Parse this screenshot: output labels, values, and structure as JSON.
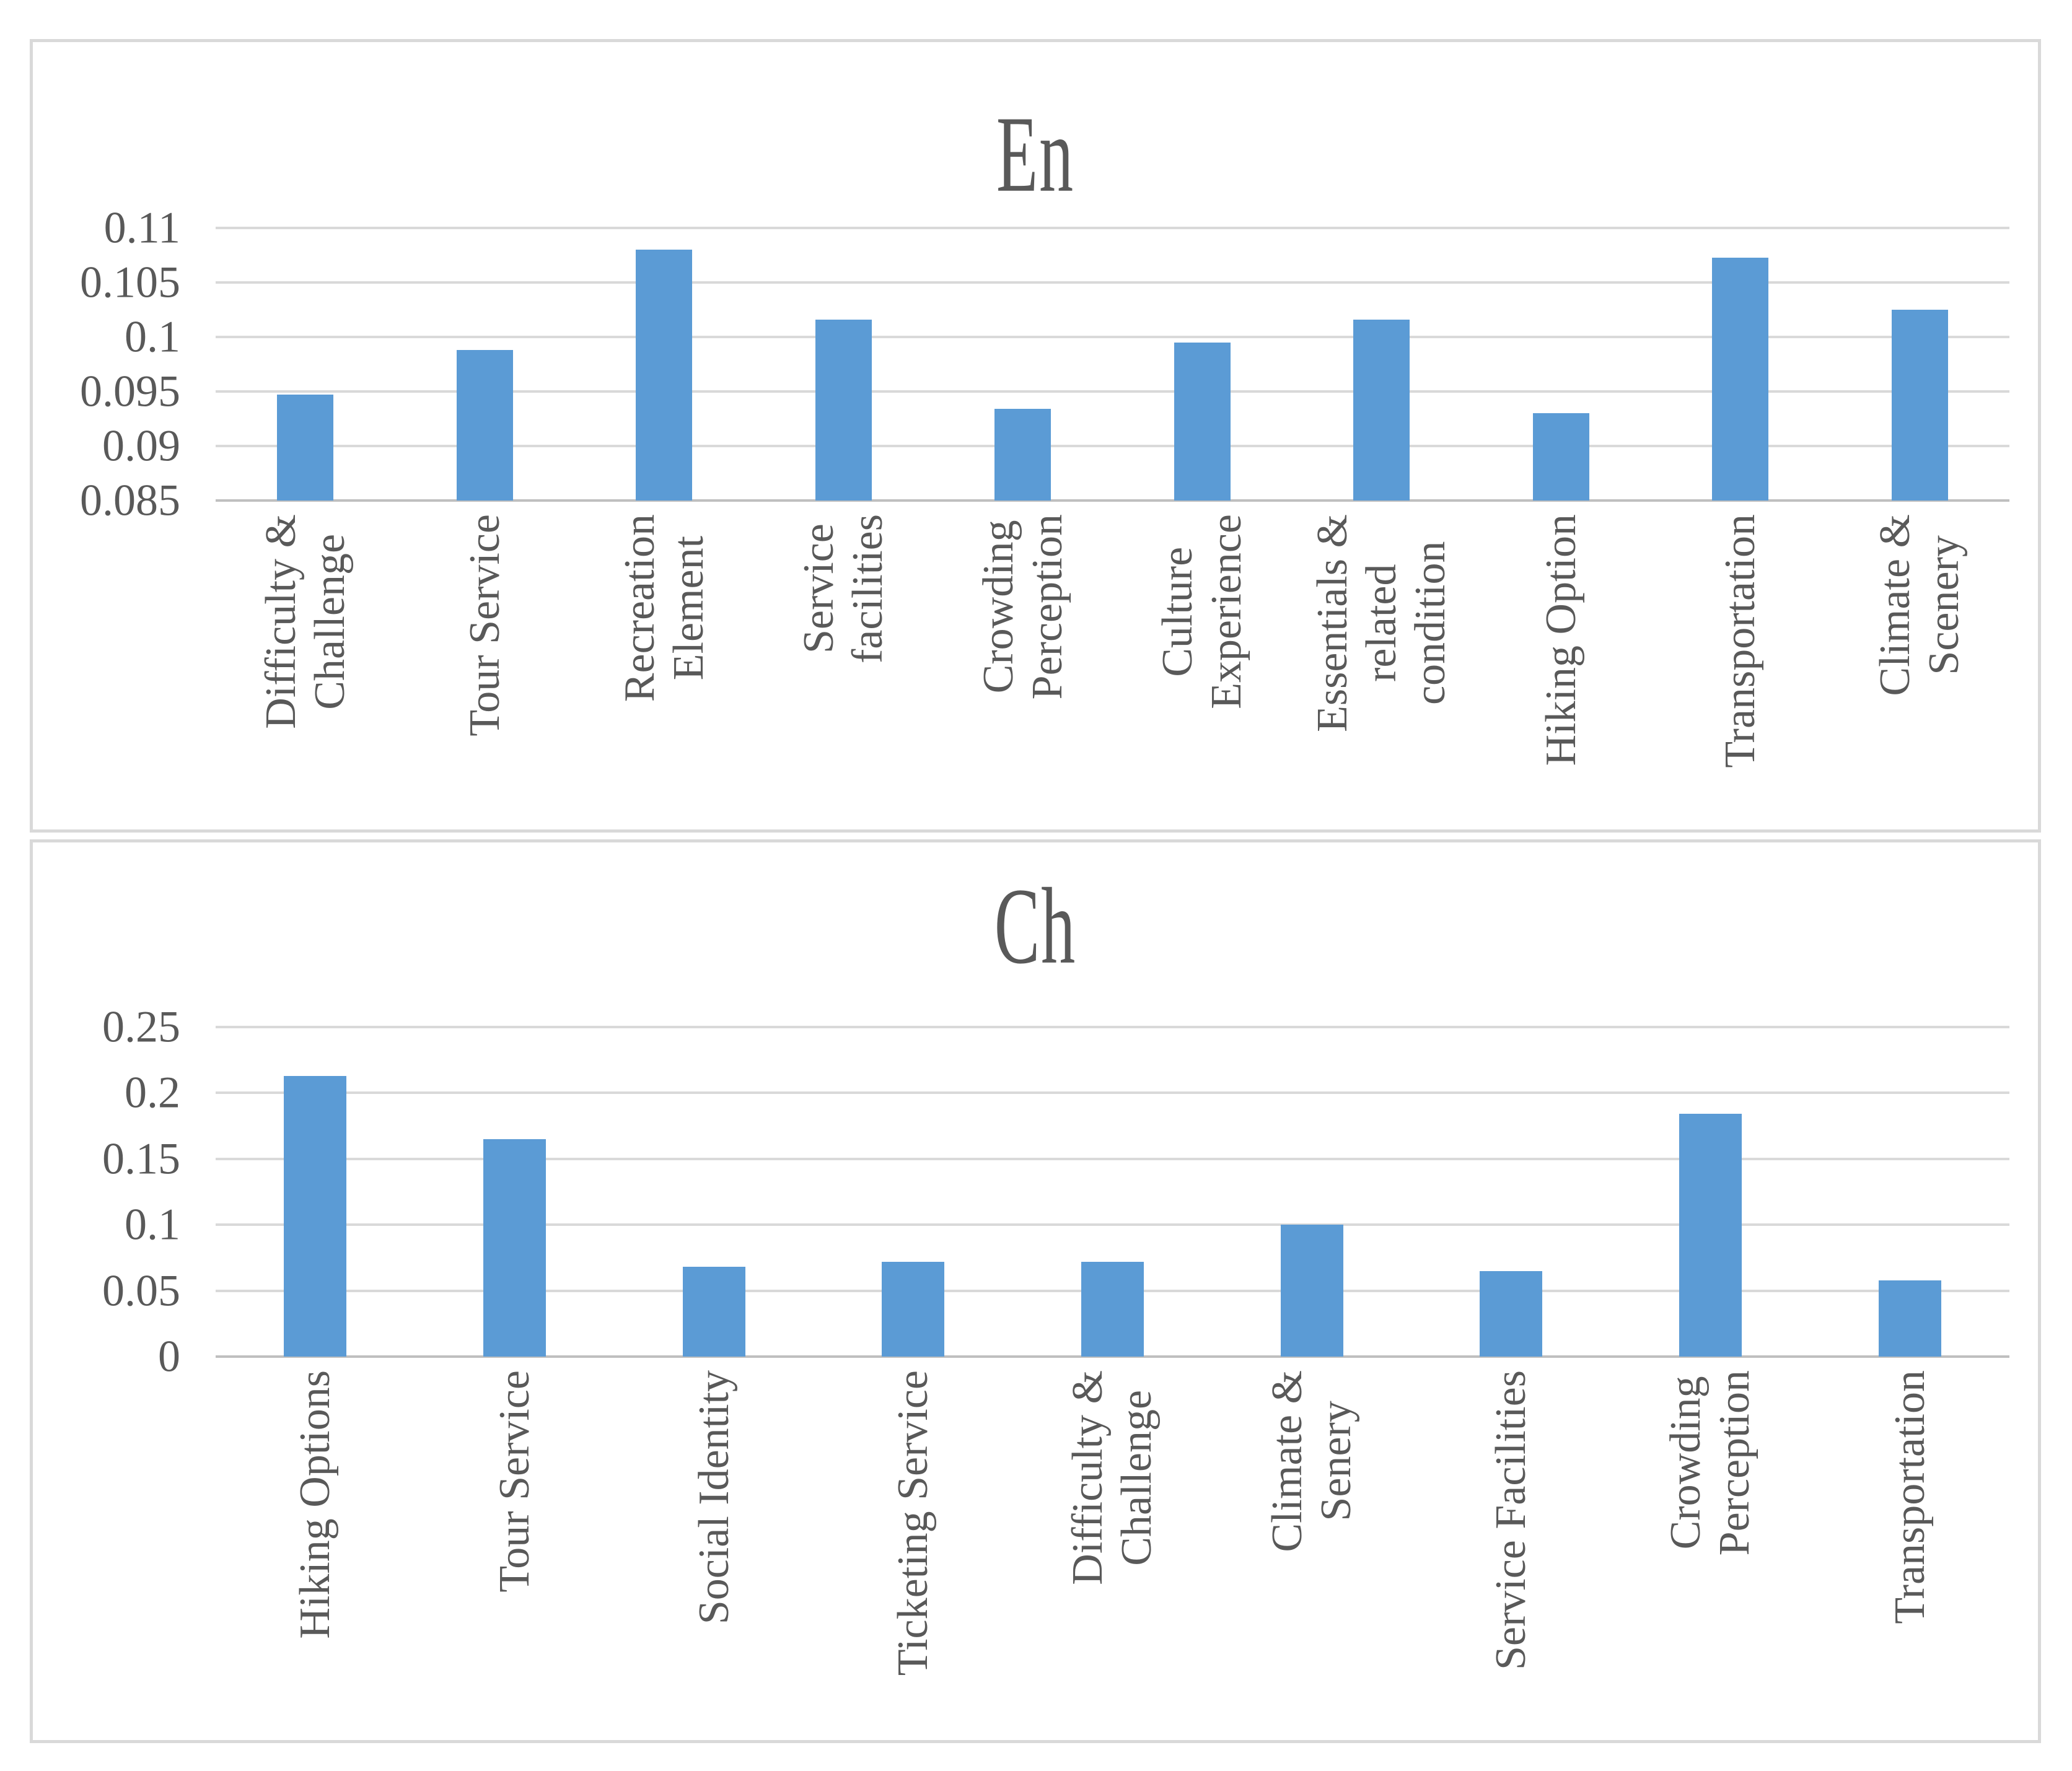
{
  "colors": {
    "bar": "#5B9BD5",
    "gridline": "#D9D9D9",
    "axis_line": "#BFBFBF",
    "text": "#595959",
    "panel_border": "#D9D9D9",
    "background": "#FFFFFF"
  },
  "chart_data": [
    {
      "type": "bar",
      "title": "En",
      "categories": [
        "Difficulty &\nChallenge",
        "Tour Service",
        "Recreation\nElement",
        "Service\nfacilities",
        "Crowding\nPerception",
        "Culture\nExperience",
        "Essentials &\nrelated\ncondition",
        "Hiking Option",
        "Transportation",
        "Climate &\nScenery"
      ],
      "values": [
        0.0947,
        0.0988,
        0.108,
        0.1016,
        0.0934,
        0.0995,
        0.1016,
        0.093,
        0.1073,
        0.1025
      ],
      "xlabel": "",
      "ylabel": "",
      "ylim": [
        0.085,
        0.11
      ],
      "ytick_step": 0.005,
      "ytick_labels": [
        "0.085",
        "0.09",
        "0.095",
        "0.1",
        "0.105",
        "0.11"
      ],
      "grid": true,
      "legend": "none",
      "bar_color": "#5B9BD5"
    },
    {
      "type": "bar",
      "title": "Ch",
      "categories": [
        "Hiking Options",
        "Tour Service",
        "Social Identity",
        "Ticketing Service",
        "Difficulty &\nChallenge",
        "Climate &\nSenery",
        "Service Facilities",
        "Crowding\nPerception",
        "Transportation"
      ],
      "values": [
        0.213,
        0.165,
        0.068,
        0.072,
        0.072,
        0.1,
        0.065,
        0.184,
        0.058
      ],
      "xlabel": "",
      "ylabel": "",
      "ylim": [
        0,
        0.25
      ],
      "ytick_step": 0.05,
      "ytick_labels": [
        "0",
        "0.05",
        "0.1",
        "0.15",
        "0.2",
        "0.25"
      ],
      "grid": true,
      "legend": "none",
      "bar_color": "#5B9BD5"
    }
  ]
}
